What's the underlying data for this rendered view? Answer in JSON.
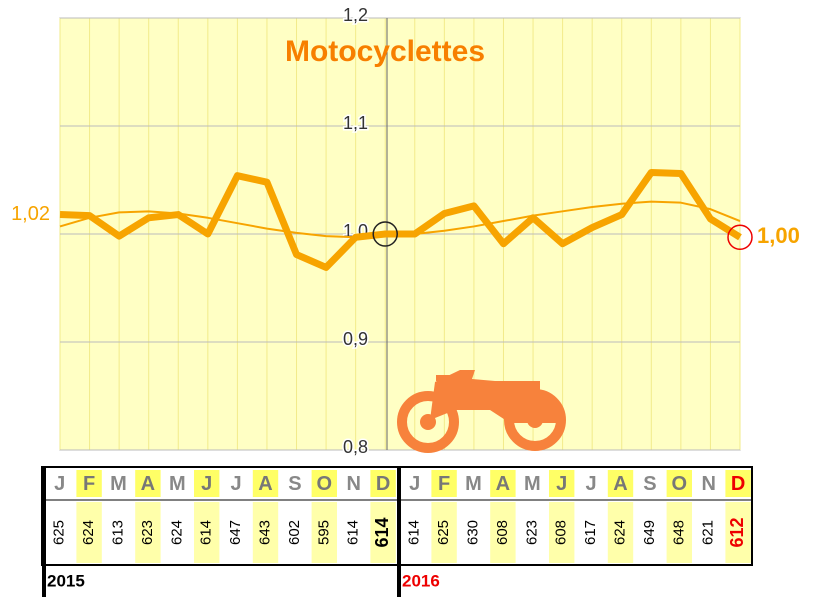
{
  "chart_data": {
    "type": "line",
    "title": "Motocyclettes",
    "ylim": [
      0.8,
      1.2
    ],
    "yticks": [
      {
        "value": 0.8,
        "label": "0,8"
      },
      {
        "value": 0.9,
        "label": "0,9"
      },
      {
        "value": 1.0,
        "label": "1,0"
      },
      {
        "value": 1.1,
        "label": "1,1"
      },
      {
        "value": 1.2,
        "label": "1,2"
      }
    ],
    "grid": true,
    "series": [
      {
        "color": "#f7a400",
        "width": 7,
        "values": [
          1.018,
          1.017,
          0.998,
          1.015,
          1.018,
          1.0,
          1.054,
          1.048,
          0.981,
          0.969,
          0.997,
          1.0,
          1.0,
          1.019,
          1.026,
          0.991,
          1.015,
          0.991,
          1.006,
          1.018,
          1.057,
          1.056,
          1.014,
          0.997
        ],
        "value_labels": [
          "1,02",
          null,
          null,
          null,
          null,
          null,
          null,
          null,
          null,
          null,
          null,
          null,
          null,
          null,
          null,
          null,
          null,
          null,
          null,
          null,
          null,
          null,
          null,
          "1,00"
        ]
      },
      {
        "color": "#f7a400",
        "width": 2,
        "values": [
          1.007,
          1.015,
          1.02,
          1.021,
          1.019,
          1.015,
          1.01,
          1.005,
          1.001,
          0.998,
          0.997,
          0.998,
          1.0,
          1.003,
          1.007,
          1.012,
          1.017,
          1.021,
          1.025,
          1.028,
          1.03,
          1.029,
          1.023,
          1.012
        ]
      }
    ]
  },
  "table": {
    "years": [
      "2015",
      "2016"
    ],
    "months": [
      [
        "J",
        "F",
        "M",
        "A",
        "M",
        "J",
        "J",
        "A",
        "S",
        "O",
        "N",
        "D"
      ],
      [
        "J",
        "F",
        "M",
        "A",
        "M",
        "J",
        "J",
        "A",
        "S",
        "O",
        "N",
        "D"
      ]
    ],
    "counts": [
      [
        "625",
        "624",
        "613",
        "623",
        "624",
        "614",
        "647",
        "643",
        "602",
        "595",
        "614",
        "614"
      ],
      [
        "614",
        "625",
        "630",
        "608",
        "623",
        "608",
        "617",
        "624",
        "649",
        "648",
        "621",
        "612"
      ]
    ]
  }
}
